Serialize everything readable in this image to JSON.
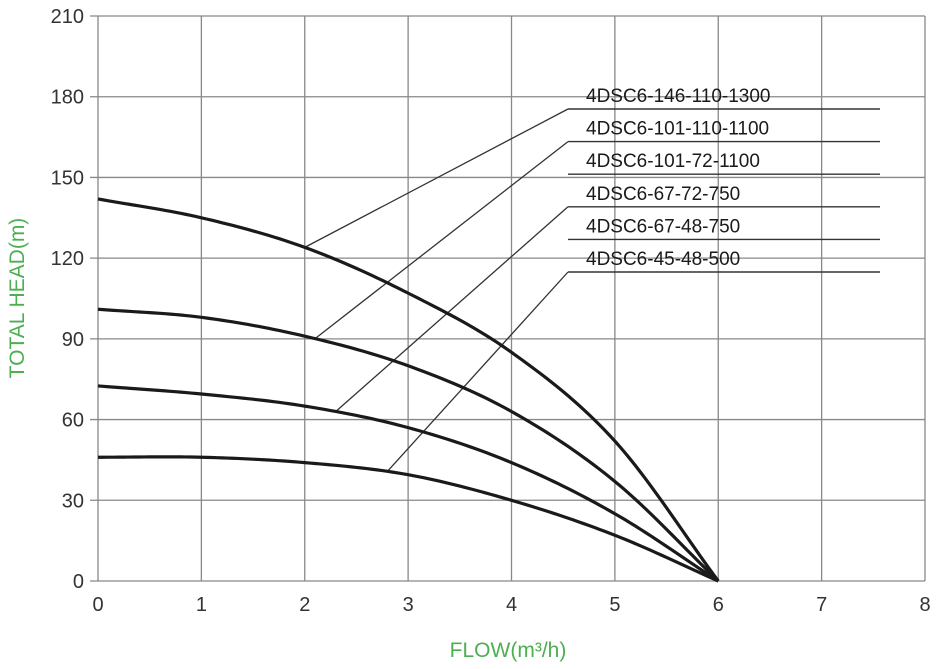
{
  "chart_data": {
    "type": "line",
    "title": "",
    "xlabel": "FLOW(m³/h)",
    "ylabel": "TOTAL HEAD(m)",
    "xlim": [
      0,
      8
    ],
    "ylim": [
      0,
      210
    ],
    "x_ticks": [
      "0",
      "1",
      "2",
      "3",
      "4",
      "5",
      "6",
      "7",
      "8"
    ],
    "y_ticks": [
      "0",
      "30",
      "60",
      "90",
      "120",
      "150",
      "180",
      "210"
    ],
    "grid": true,
    "colors": {
      "axis_title": "#4caf50",
      "grid": "#888888",
      "curve": "#1a1a1a"
    },
    "series": [
      {
        "x": [
          0,
          1,
          2,
          3,
          4,
          5,
          6
        ],
        "values": [
          142,
          135,
          124,
          107,
          85,
          52,
          0
        ]
      },
      {
        "x": [
          0,
          1,
          2,
          3,
          4,
          5,
          6
        ],
        "values": [
          101,
          98,
          91,
          80,
          63,
          37,
          0
        ]
      },
      {
        "x": [
          0,
          1,
          2,
          3,
          4,
          5,
          6
        ],
        "values": [
          72.5,
          69.5,
          65,
          57,
          44,
          25,
          0
        ]
      },
      {
        "x": [
          0,
          1,
          2,
          3,
          4,
          5,
          6
        ],
        "values": [
          46,
          46,
          44,
          39.5,
          30,
          17,
          0
        ]
      }
    ],
    "curve_labels": [
      "4DSC6-146-110-1300",
      "4DSC6-101-110-1100",
      "4DSC6-101-72-1100",
      "4DSC6-67-72-750",
      "4DSC6-67-48-750",
      "4DSC6-45-48-500"
    ],
    "leaders": [
      {
        "label": "4DSC6-146-110-1300",
        "series": 0,
        "x": 2.0
      },
      {
        "label": "4DSC6-101-110-1100",
        "series": 1,
        "x": 2.1
      },
      {
        "label": "4DSC6-67-72-750",
        "series": 2,
        "x": 2.3
      },
      {
        "label": "4DSC6-45-48-500",
        "series": 3,
        "x": 2.8
      }
    ]
  }
}
